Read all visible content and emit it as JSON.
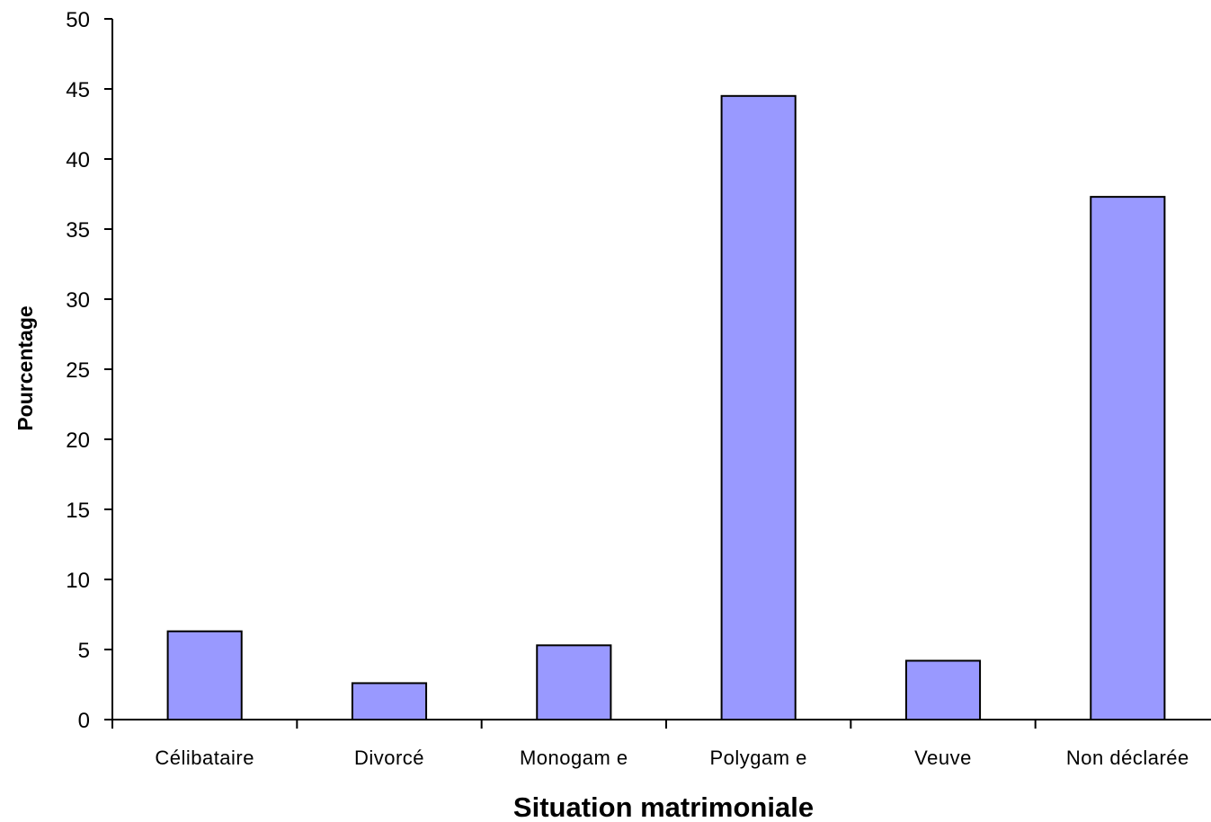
{
  "chart_data": {
    "type": "bar",
    "title": "",
    "xlabel": "Situation matrimoniale",
    "ylabel": "Pourcentage",
    "categories": [
      "Célibataire",
      "Divorcé",
      "Monogam e",
      "Polygam e",
      "Veuve",
      "Non déclarée"
    ],
    "values": [
      6.3,
      2.6,
      5.3,
      44.5,
      4.2,
      37.3
    ],
    "ylim": [
      0,
      50
    ],
    "yticks": [
      0,
      5,
      10,
      15,
      20,
      25,
      30,
      35,
      40,
      45,
      50
    ],
    "grid": false,
    "legend": "none",
    "bar_color": "#9999ff",
    "bar_edge_color": "#000000"
  }
}
